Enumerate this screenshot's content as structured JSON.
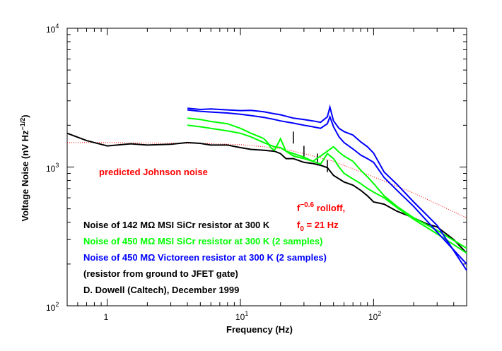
{
  "chart_data": {
    "type": "line",
    "x_scale": "log",
    "y_scale": "log",
    "xlim": [
      0.5,
      500
    ],
    "ylim": [
      100,
      10000
    ],
    "xlabel": "Frequency (Hz)",
    "ylabel": "Voltage Noise (nV Hz-1/2)",
    "ylabel_parts": {
      "main": "Voltage Noise (nV Hz",
      "sup": "−1/2",
      "end": ")"
    },
    "x_tick_labels": [
      {
        "value": 1,
        "label": "1"
      },
      {
        "value": 10,
        "label": "10",
        "base": "10",
        "exp": "1"
      },
      {
        "value": 100,
        "label": "100",
        "base": "10",
        "exp": "2"
      }
    ],
    "y_tick_labels": [
      {
        "value": 100,
        "label": "100",
        "base": "10",
        "exp": "2"
      },
      {
        "value": 1000,
        "label": "1000",
        "base": "10",
        "exp": "3"
      },
      {
        "value": 10000,
        "label": "10000",
        "base": "10",
        "exp": "4"
      }
    ],
    "grid": false,
    "colors": {
      "black": "#000000",
      "green": "#00ff00",
      "blue": "#0000ff",
      "red": "#ff0000"
    },
    "series": [
      {
        "color": "#ff0000",
        "style": "dotted",
        "x": [
          0.5,
          1,
          2,
          5,
          10,
          15,
          21,
          30,
          50,
          100,
          200,
          500
        ],
        "y": [
          1500,
          1500,
          1490,
          1480,
          1450,
          1400,
          1350,
          1250,
          1100,
          850,
          650,
          430
        ]
      },
      {
        "color": "#000000",
        "x": [
          0.5,
          0.7,
          1,
          1.5,
          2,
          3,
          4,
          5,
          6,
          8,
          10,
          12,
          15,
          18,
          20,
          22,
          25,
          30,
          35,
          40,
          45,
          50,
          60,
          70,
          80,
          90,
          100,
          120,
          150,
          200,
          250,
          300,
          400,
          500
        ],
        "y": [
          1750,
          1550,
          1420,
          1470,
          1440,
          1460,
          1500,
          1480,
          1440,
          1440,
          1380,
          1340,
          1320,
          1300,
          1250,
          1150,
          1150,
          1080,
          1060,
          1030,
          990,
          870,
          780,
          740,
          680,
          620,
          560,
          540,
          480,
          430,
          390,
          370,
          300,
          240
        ]
      },
      {
        "color": "#000000",
        "style": "spikes",
        "x": [
          25,
          30,
          38,
          45
        ],
        "y": [
          1800,
          1420,
          1250,
          1120
        ]
      },
      {
        "color": "#00ff00",
        "x": [
          4,
          5,
          6,
          8,
          10,
          12,
          14,
          15,
          16,
          17,
          18,
          19,
          20,
          22,
          25,
          30,
          35,
          40,
          45,
          50,
          55,
          60,
          70,
          80,
          90,
          100,
          120,
          150,
          200,
          300,
          500
        ],
        "y": [
          2250,
          2200,
          2130,
          2050,
          1900,
          1750,
          1650,
          1600,
          1500,
          1370,
          1320,
          1450,
          1600,
          1300,
          1250,
          1180,
          1100,
          1200,
          1300,
          1400,
          1280,
          1200,
          1100,
          950,
          850,
          760,
          620,
          520,
          430,
          350,
          260
        ]
      },
      {
        "color": "#00ff00",
        "x": [
          4,
          5,
          6,
          8,
          10,
          12,
          15,
          18,
          20,
          22,
          25,
          30,
          35,
          40,
          45,
          50,
          55,
          60,
          70,
          80,
          90,
          100,
          120,
          150,
          200,
          300,
          500
        ],
        "y": [
          2000,
          1950,
          1900,
          1820,
          1750,
          1650,
          1500,
          1400,
          1380,
          1300,
          1200,
          1150,
          1100,
          1050,
          1250,
          1150,
          1000,
          900,
          820,
          760,
          700,
          660,
          600,
          510,
          420,
          330,
          240
        ]
      },
      {
        "color": "#0000ff",
        "x": [
          4,
          5,
          6,
          8,
          10,
          12,
          15,
          18,
          20,
          25,
          30,
          35,
          40,
          45,
          47,
          50,
          55,
          60,
          70,
          80,
          90,
          100,
          120,
          150,
          200,
          300,
          500
        ],
        "y": [
          2650,
          2600,
          2620,
          2580,
          2550,
          2560,
          2500,
          2420,
          2380,
          2250,
          2200,
          2150,
          2100,
          2300,
          2700,
          2150,
          1900,
          1800,
          1700,
          1520,
          1400,
          1260,
          920,
          750,
          560,
          380,
          180
        ]
      },
      {
        "color": "#0000ff",
        "x": [
          4,
          5,
          6,
          8,
          10,
          12,
          15,
          18,
          20,
          25,
          30,
          35,
          40,
          45,
          47,
          50,
          55,
          60,
          70,
          80,
          90,
          100,
          120,
          150,
          200,
          300,
          500
        ],
        "y": [
          2580,
          2520,
          2490,
          2450,
          2400,
          2350,
          2280,
          2200,
          2150,
          2070,
          2000,
          1950,
          1900,
          2050,
          2300,
          1950,
          1650,
          1500,
          1350,
          1220,
          1150,
          1080,
          840,
          680,
          520,
          340,
          200
        ]
      }
    ],
    "annotations": {
      "johnson": {
        "text": "predicted Johnson noise",
        "color": "#ff0000"
      },
      "rolloff_f": "f",
      "rolloff_exp": "−0.6",
      "rolloff_text": " rolloff,",
      "rolloff_f0": "f",
      "rolloff_f0_sub": "0",
      "rolloff_f0_text": " = 21 Hz",
      "rolloff_color": "#ff0000"
    },
    "legend": [
      {
        "text": "Noise of 142 MΩ MSI SiCr resistor at 300 K",
        "color": "#000000"
      },
      {
        "text": "Noise of 450 MΩ MSI SiCr resistor at 300 K (2 samples)",
        "color": "#00ff00"
      },
      {
        "text": "Noise of 450 MΩ Victoreen resistor at 300 K (2 samples)",
        "color": "#0000ff"
      },
      {
        "text": "(resistor from ground to JFET gate)",
        "color": "#000000"
      },
      {
        "text": "D. Dowell (Caltech), December 1999",
        "color": "#000000"
      }
    ]
  }
}
